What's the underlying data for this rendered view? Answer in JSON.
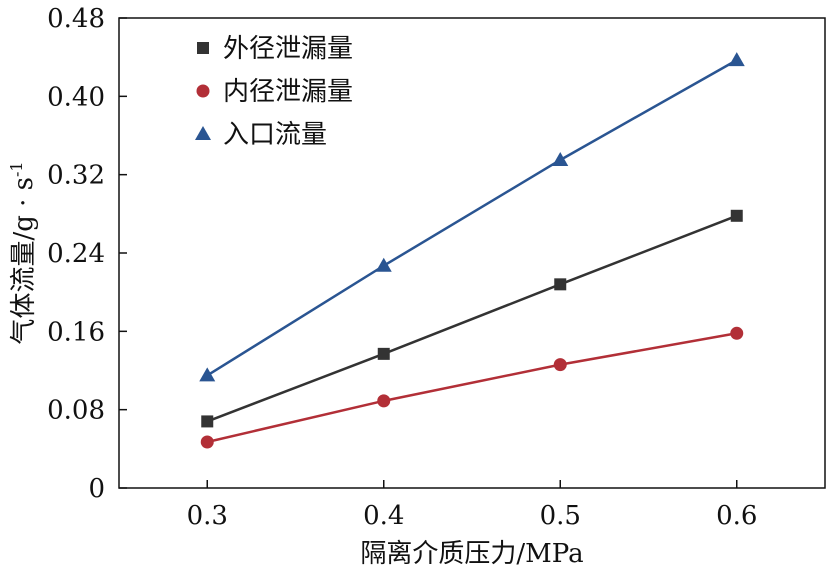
{
  "chart_data": {
    "type": "line",
    "title": "",
    "xlabel": "隔离介质压力/MPa",
    "ylabel_main": "气体流量/g · s",
    "ylabel_sup": "-1",
    "x": [
      0.3,
      0.4,
      0.5,
      0.6
    ],
    "xlim": [
      0.25,
      0.65
    ],
    "ylim": [
      0,
      0.48
    ],
    "xticks": [
      0.3,
      0.4,
      0.5,
      0.6
    ],
    "xtick_labels": [
      "0.3",
      "0.4",
      "0.5",
      "0.6"
    ],
    "yticks": [
      0,
      0.08,
      0.16,
      0.24,
      0.32,
      0.4,
      0.48
    ],
    "ytick_labels": [
      "0",
      "0.08",
      "0.16",
      "0.24",
      "0.32",
      "0.40",
      "0.48"
    ],
    "grid": false,
    "legend_position": "top-left",
    "series": [
      {
        "name": "外径泄漏量",
        "marker": "square",
        "color": "#333333",
        "values": [
          0.068,
          0.137,
          0.208,
          0.278
        ]
      },
      {
        "name": "内径泄漏量",
        "marker": "circle",
        "color": "#b22f37",
        "values": [
          0.047,
          0.089,
          0.126,
          0.158
        ]
      },
      {
        "name": "入口流量",
        "marker": "triangle",
        "color": "#2a5592",
        "values": [
          0.115,
          0.227,
          0.335,
          0.437
        ]
      }
    ]
  }
}
